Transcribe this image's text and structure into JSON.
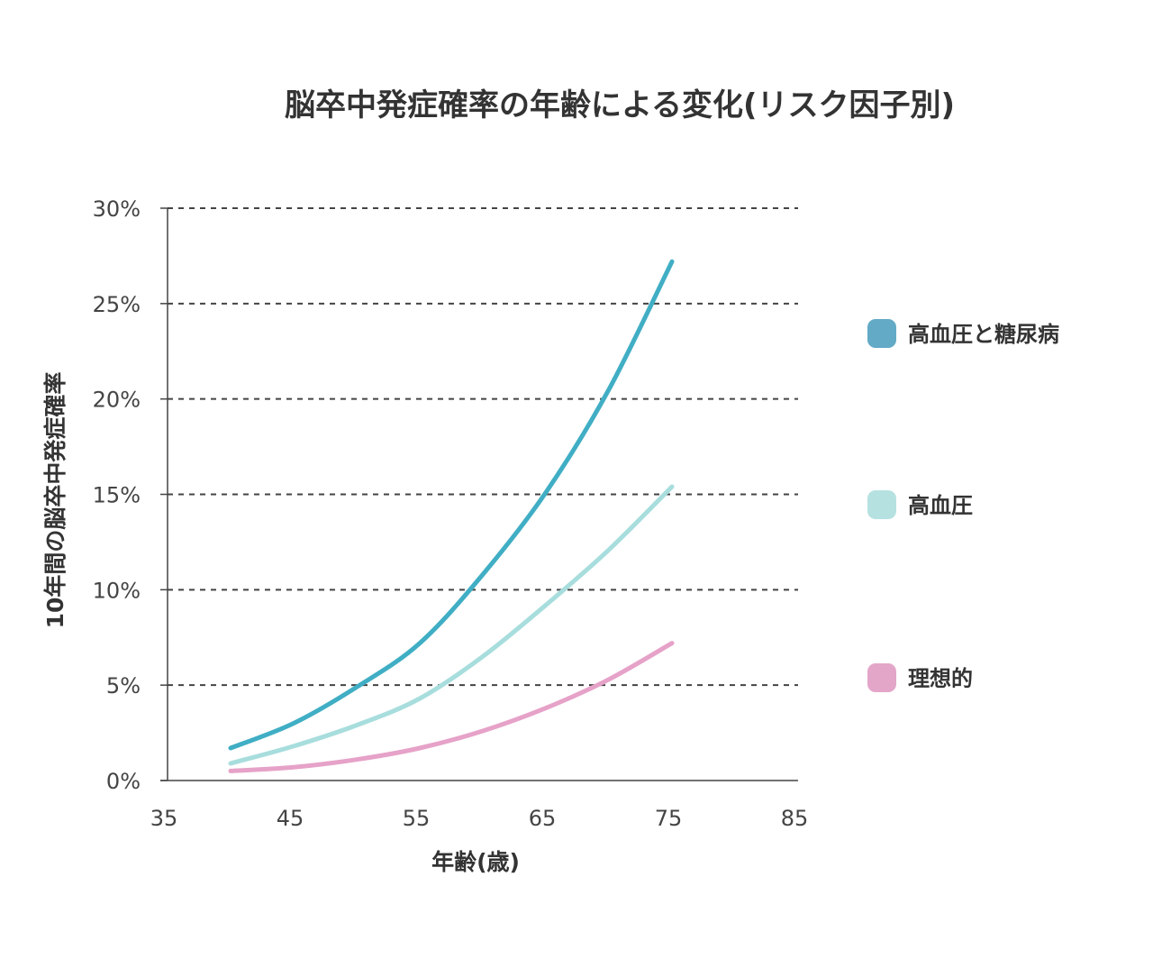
{
  "chart_data": {
    "type": "line",
    "title": "脳卒中発症確率の年齢による変化(リスク因子別)",
    "xlabel": "年齢(歳)",
    "ylabel": "10年間の脳卒中発症確率",
    "xlim": [
      35,
      85
    ],
    "ylim": [
      0,
      30
    ],
    "x_ticks": [
      "35",
      "45",
      "55",
      "65",
      "75",
      "85"
    ],
    "y_ticks": [
      "0%",
      "5%",
      "10%",
      "15%",
      "20%",
      "25%",
      "30%"
    ],
    "grid": "horizontal-dashed",
    "legend_position": "right",
    "x": [
      40,
      45,
      50,
      55,
      60,
      65,
      70,
      75
    ],
    "series": [
      {
        "name": "高血圧と糖尿病",
        "color": "#40aec4",
        "legend_color": "#62aac6",
        "values": [
          1.7,
          3.0,
          4.9,
          7.2,
          10.8,
          15.1,
          20.5,
          27.2
        ]
      },
      {
        "name": "高血圧",
        "color": "#a8dddd",
        "legend_color": "#b6e1e1",
        "values": [
          0.9,
          1.8,
          2.9,
          4.3,
          6.5,
          9.2,
          12.1,
          15.4
        ]
      },
      {
        "name": "理想的",
        "color": "#e6a2c8",
        "legend_color": "#e3a6c9",
        "values": [
          0.5,
          0.7,
          1.1,
          1.7,
          2.6,
          3.8,
          5.3,
          7.2
        ]
      }
    ]
  }
}
